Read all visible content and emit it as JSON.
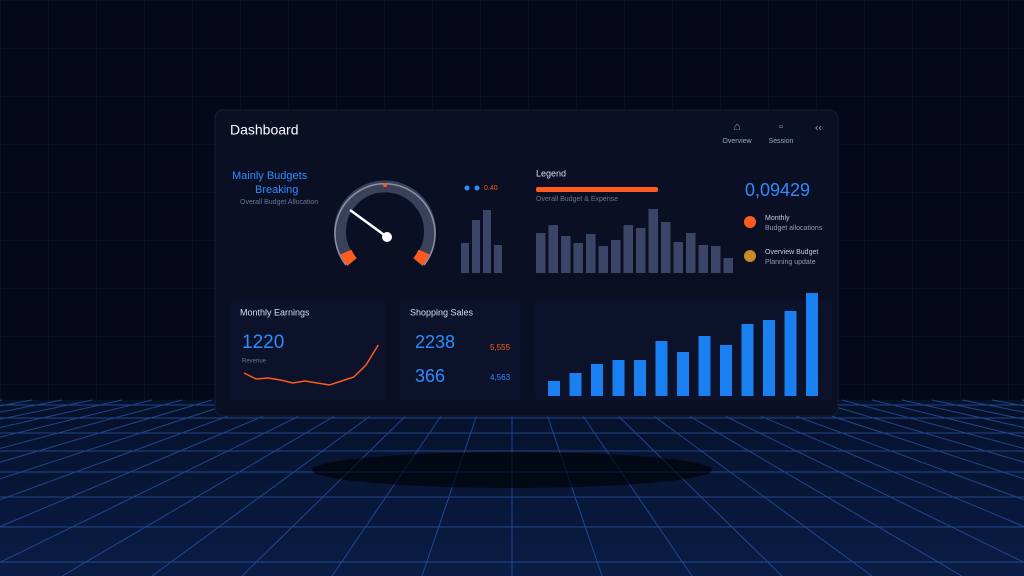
{
  "header": {
    "title": "Dashboard",
    "actions": [
      "Overview",
      "Session"
    ]
  },
  "gauge_panel": {
    "title": "Mainly Budgets",
    "subtitle": "Breaking",
    "caption": "Overall Budget Allocation",
    "legend": "0.40",
    "bars": [
      30,
      53,
      63,
      28
    ]
  },
  "legend_panel": {
    "title": "Legend",
    "caption": "Overall Budget & Expense",
    "bars": [
      40,
      48,
      37,
      30,
      39,
      27,
      33,
      48,
      45,
      64,
      51,
      31,
      40,
      28,
      27,
      15
    ]
  },
  "stats": {
    "value": "0,09429",
    "items": [
      {
        "title": "Monthly",
        "text": "Budget allocations"
      },
      {
        "title": "Overview Budget",
        "text": "Planning update"
      }
    ]
  },
  "earnings": {
    "title": "Monthly Earnings",
    "value": "1220",
    "label": "Revenue",
    "line": [
      12,
      6,
      7,
      5,
      2,
      4,
      2,
      0,
      4,
      8,
      20,
      40
    ]
  },
  "sales": {
    "title": "Shopping Sales",
    "value1": "2238",
    "value2": "366",
    "side": [
      "5,555",
      "4,563"
    ]
  },
  "growth": {
    "bars": [
      15,
      23,
      32,
      36,
      36,
      55,
      44,
      60,
      51,
      72,
      76,
      85,
      103
    ]
  }
}
